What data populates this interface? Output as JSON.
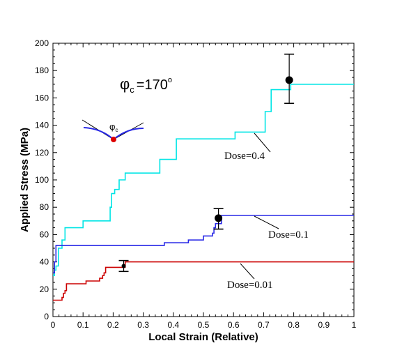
{
  "chart_data": {
    "type": "line",
    "xlabel": "Local Strain (Relative)",
    "ylabel": "Applied Stress (MPa)",
    "xlim": [
      0,
      1
    ],
    "ylim": [
      0,
      200
    ],
    "xticks": [
      "0",
      "0.1",
      "0.2",
      "0.3",
      "0.4",
      "0.5",
      "0.6",
      "0.7",
      "0.8",
      "0.9",
      "1"
    ],
    "yticks": [
      "0",
      "20",
      "40",
      "60",
      "80",
      "100",
      "120",
      "140",
      "160",
      "180",
      "200"
    ],
    "grid": false,
    "angle_label": {
      "symbol": "φ",
      "subscript": "c",
      "text": "=170",
      "superscript": "o"
    },
    "inset_label": {
      "symbol": "φ",
      "subscript": "c"
    },
    "series": [
      {
        "annotation": "Dose=0.4",
        "color": "#00e5e5",
        "points": [
          [
            0,
            30
          ],
          [
            0.005,
            30
          ],
          [
            0.005,
            34
          ],
          [
            0.01,
            34
          ],
          [
            0.01,
            37
          ],
          [
            0.018,
            37
          ],
          [
            0.018,
            50
          ],
          [
            0.03,
            50
          ],
          [
            0.03,
            56
          ],
          [
            0.04,
            56
          ],
          [
            0.04,
            65
          ],
          [
            0.1,
            65
          ],
          [
            0.1,
            70
          ],
          [
            0.19,
            70
          ],
          [
            0.19,
            80
          ],
          [
            0.195,
            80
          ],
          [
            0.195,
            90
          ],
          [
            0.205,
            90
          ],
          [
            0.205,
            93
          ],
          [
            0.22,
            93
          ],
          [
            0.22,
            100
          ],
          [
            0.24,
            100
          ],
          [
            0.24,
            105
          ],
          [
            0.355,
            105
          ],
          [
            0.355,
            115
          ],
          [
            0.41,
            115
          ],
          [
            0.41,
            130
          ],
          [
            0.605,
            130
          ],
          [
            0.605,
            135
          ],
          [
            0.705,
            135
          ],
          [
            0.705,
            150
          ],
          [
            0.725,
            150
          ],
          [
            0.725,
            166
          ],
          [
            0.79,
            166
          ],
          [
            0.79,
            170
          ],
          [
            1.0,
            170
          ]
        ],
        "error_bar": {
          "x": 0.785,
          "y": 173,
          "low": 156,
          "high": 192
        }
      },
      {
        "annotation": "Dose=0.1",
        "color": "#2828e6",
        "points": [
          [
            0,
            32
          ],
          [
            0.005,
            32
          ],
          [
            0.005,
            40
          ],
          [
            0.01,
            40
          ],
          [
            0.01,
            52
          ],
          [
            0.37,
            52
          ],
          [
            0.37,
            54
          ],
          [
            0.45,
            54
          ],
          [
            0.45,
            56
          ],
          [
            0.5,
            56
          ],
          [
            0.5,
            59
          ],
          [
            0.53,
            59
          ],
          [
            0.53,
            61
          ],
          [
            0.535,
            61
          ],
          [
            0.535,
            65
          ],
          [
            0.54,
            65
          ],
          [
            0.54,
            68
          ],
          [
            0.56,
            68
          ],
          [
            0.56,
            74
          ],
          [
            1.0,
            74
          ]
        ],
        "error_bar": {
          "x": 0.55,
          "y": 72,
          "low": 64,
          "high": 79
        }
      },
      {
        "annotation": "Dose=0.01",
        "color": "#cc0000",
        "points": [
          [
            0,
            12
          ],
          [
            0.01,
            12
          ],
          [
            0.01,
            12
          ],
          [
            0.03,
            12
          ],
          [
            0.03,
            14
          ],
          [
            0.035,
            14
          ],
          [
            0.035,
            17
          ],
          [
            0.04,
            17
          ],
          [
            0.04,
            19
          ],
          [
            0.045,
            19
          ],
          [
            0.045,
            24
          ],
          [
            0.11,
            24
          ],
          [
            0.11,
            26
          ],
          [
            0.155,
            26
          ],
          [
            0.155,
            28
          ],
          [
            0.165,
            28
          ],
          [
            0.165,
            30
          ],
          [
            0.17,
            30
          ],
          [
            0.17,
            32
          ],
          [
            0.175,
            32
          ],
          [
            0.175,
            36
          ],
          [
            0.24,
            36
          ],
          [
            0.24,
            40
          ],
          [
            1.0,
            40
          ]
        ],
        "error_bar": {
          "x": 0.235,
          "y": 37,
          "low": 33,
          "high": 41
        }
      }
    ]
  }
}
